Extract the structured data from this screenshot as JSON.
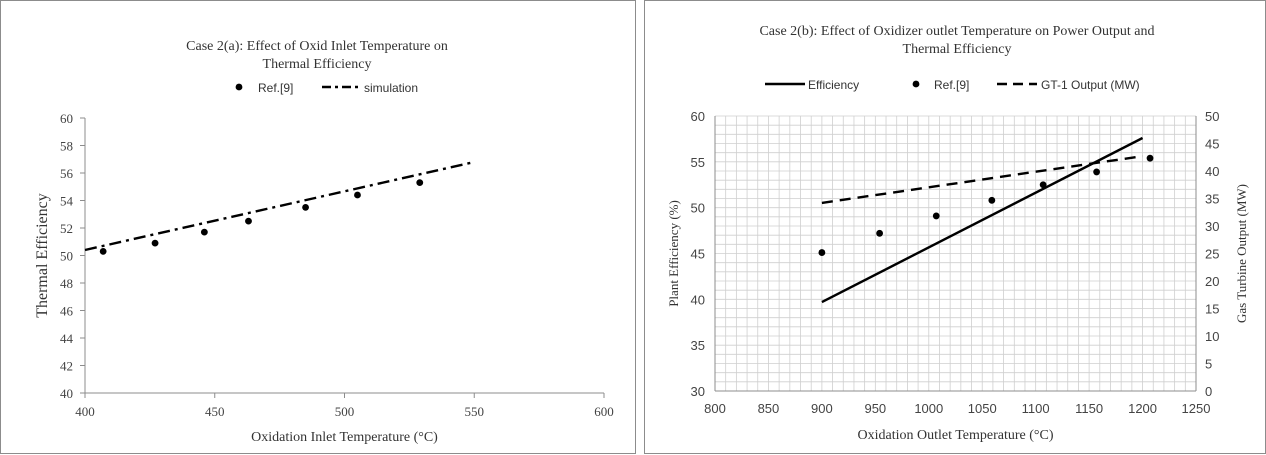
{
  "chart_data": [
    {
      "type": "scatter",
      "title_lines": [
        "Case 2(a): Effect of Oxid Inlet Temperature on",
        "Thermal Efficiency"
      ],
      "xlabel": "Oxidation Inlet Temperature (°C)",
      "ylabel": "Thermal Efficiency",
      "xlim": [
        400,
        600
      ],
      "ylim": [
        40,
        60
      ],
      "xticks": [
        400,
        450,
        500,
        550,
        600
      ],
      "yticks": [
        40,
        42,
        44,
        46,
        48,
        50,
        52,
        54,
        56,
        58,
        60
      ],
      "grid": false,
      "legend_position": "top",
      "series": [
        {
          "name": "Ref.[9]",
          "style": "dots",
          "color": "#000000",
          "points": [
            [
              407,
              50.3
            ],
            [
              427,
              50.9
            ],
            [
              446,
              51.7
            ],
            [
              463,
              52.5
            ],
            [
              485,
              53.5
            ],
            [
              505,
              54.4
            ],
            [
              529,
              55.3
            ]
          ]
        },
        {
          "name": "simulation",
          "style": "dash-dot",
          "color": "#000000",
          "points": [
            [
              400,
              50.4
            ],
            [
              550,
              56.8
            ]
          ]
        }
      ]
    },
    {
      "type": "line",
      "title_lines": [
        "Case 2(b):  Effect of Oxidizer outlet Temperature  on Power Output and",
        "Thermal Efficiency"
      ],
      "xlabel": "Oxidation  Outlet Temperature (°C)",
      "ylabel": "Plant Efficiency (%)",
      "y2label": "Gas Turbine Output (MW)",
      "xlim": [
        800,
        1250
      ],
      "ylim": [
        30,
        60
      ],
      "y2lim": [
        0,
        50
      ],
      "xticks": [
        800,
        850,
        900,
        950,
        1000,
        1050,
        1100,
        1150,
        1200,
        1250
      ],
      "yticks": [
        30,
        35,
        40,
        45,
        50,
        55,
        60
      ],
      "y2ticks": [
        0,
        5,
        10,
        15,
        20,
        25,
        30,
        35,
        40,
        45,
        50
      ],
      "grid": true,
      "legend_position": "top",
      "series": [
        {
          "name": "Efficiency",
          "style": "solid",
          "axis": "left",
          "color": "#000000",
          "points": [
            [
              900,
              39.7
            ],
            [
              1200,
              57.6
            ]
          ]
        },
        {
          "name": "Ref.[9]",
          "style": "dots",
          "axis": "left",
          "color": "#000000",
          "points": [
            [
              900,
              45.1
            ],
            [
              954,
              47.2
            ],
            [
              1007,
              49.1
            ],
            [
              1059,
              50.8
            ],
            [
              1107,
              52.5
            ],
            [
              1157,
              53.9
            ],
            [
              1207,
              55.4
            ]
          ]
        },
        {
          "name": "GT-1 Output (MW)",
          "style": "dashed",
          "axis": "right",
          "color": "#000000",
          "points": [
            [
              900,
              34.2
            ],
            [
              1200,
              42.7
            ]
          ]
        }
      ]
    }
  ]
}
